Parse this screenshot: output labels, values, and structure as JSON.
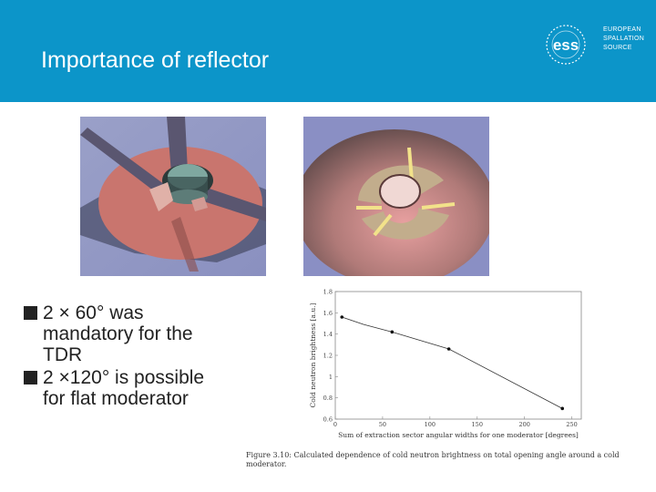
{
  "slide": {
    "title": "Importance of reflector",
    "header_color": "#0c95c9"
  },
  "logo": {
    "mark_text": "ess",
    "lines": [
      "EUROPEAN",
      "SPALLATION",
      "SOURCE"
    ]
  },
  "images": [
    {
      "name": "moderator-render-2x60"
    },
    {
      "name": "moderator-render-2x120"
    }
  ],
  "bullets": [
    {
      "text": "2 × 60° was mandatory for the TDR"
    },
    {
      "text": "2 ×120° is possible for flat moderator"
    }
  ],
  "chart_data": {
    "type": "line",
    "xlabel": "Sum of extraction sector angular widths for one moderator [degrees]",
    "ylabel": "Cold neutron brightness [a.u.]",
    "xlim": [
      0,
      260
    ],
    "ylim": [
      0.6,
      1.8
    ],
    "xticks": [
      0,
      50,
      100,
      150,
      200,
      250
    ],
    "xtick_labels": [
      "0",
      "50",
      "100",
      "150",
      "200",
      "250"
    ],
    "yticks": [
      0.6,
      0.8,
      1.0,
      1.2,
      1.4,
      1.6,
      1.8
    ],
    "ytick_labels": [
      "0.6",
      "0.8",
      "1",
      "1.2",
      "1.4",
      "1.6",
      "1.8"
    ],
    "series": [
      {
        "x": [
          7,
          30,
          60,
          120,
          240
        ],
        "y": [
          1.56,
          1.49,
          1.42,
          1.26,
          0.7
        ],
        "style": "line"
      },
      {
        "x": [
          7,
          60,
          120,
          240
        ],
        "y": [
          1.56,
          1.42,
          1.26,
          0.7
        ],
        "style": "points"
      }
    ]
  },
  "caption": {
    "text": "Figure 3.10: Calculated dependence of cold neutron brightness on total opening angle around a cold moderator."
  }
}
